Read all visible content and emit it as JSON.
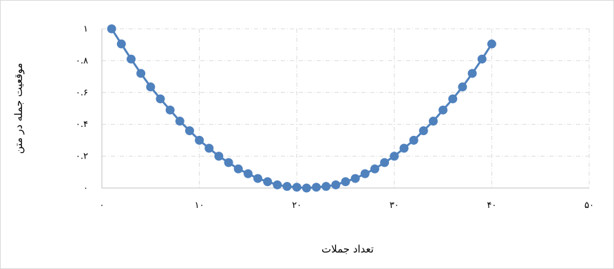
{
  "chart_data": {
    "type": "scatter",
    "xlabel": "تعداد جملات",
    "ylabel": "موقعیت جمله در متن",
    "xlim": [
      0,
      50
    ],
    "ylim": [
      0,
      1
    ],
    "x_ticks": [
      0,
      10,
      20,
      30,
      40,
      50
    ],
    "y_ticks": [
      0,
      0.2,
      0.4,
      0.6,
      0.8,
      1
    ],
    "x_tick_labels": [
      "۰",
      "۱۰",
      "۲۰",
      "۳۰",
      "۴۰",
      "۵۰"
    ],
    "y_tick_labels": [
      "۰",
      "۰.۲",
      "۰.۴",
      "۰.۶",
      "۰.۸",
      "۱"
    ],
    "grid": true,
    "marker_color": "#4f81bd",
    "line_color": "#4f81bd",
    "series": [
      {
        "x": [
          1,
          2,
          3,
          4,
          5,
          6,
          7,
          8,
          9,
          10,
          11,
          12,
          13,
          14,
          15,
          16,
          17,
          18,
          19,
          20,
          21,
          22,
          23,
          24,
          25,
          26,
          27,
          28,
          29,
          30,
          31,
          32,
          33,
          34,
          35,
          36,
          37,
          38,
          39,
          40
        ],
        "values": [
          1.0,
          0.905,
          0.81,
          0.72,
          0.635,
          0.56,
          0.49,
          0.42,
          0.36,
          0.3,
          0.25,
          0.2,
          0.16,
          0.12,
          0.09,
          0.06,
          0.04,
          0.02,
          0.01,
          0.005,
          0.0,
          0.005,
          0.01,
          0.02,
          0.04,
          0.06,
          0.09,
          0.12,
          0.16,
          0.2,
          0.25,
          0.3,
          0.36,
          0.42,
          0.49,
          0.56,
          0.635,
          0.72,
          0.81,
          0.905
        ]
      }
    ]
  }
}
